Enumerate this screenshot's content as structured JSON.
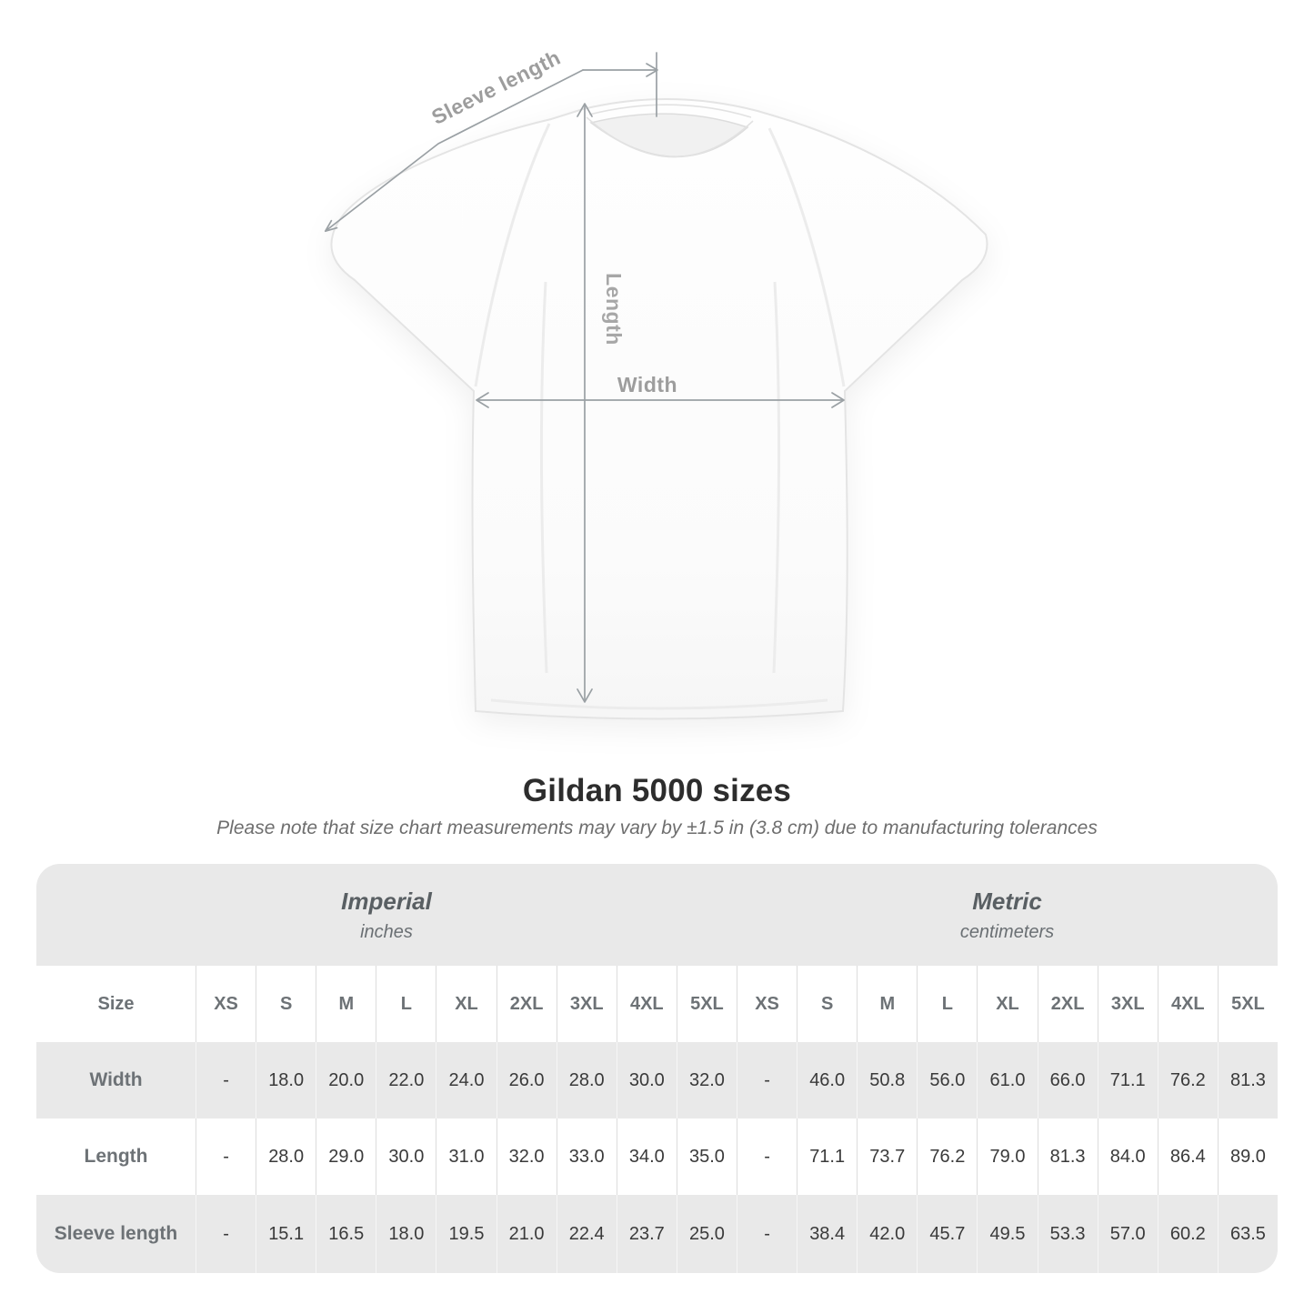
{
  "diagram": {
    "sleeve_length_label": "Sleeve length",
    "length_label": "Length",
    "width_label": "Width"
  },
  "title": "Gildan 5000 sizes",
  "subtitle": "Please note that size chart measurements may vary by ±1.5 in (3.8 cm) due to manufacturing tolerances",
  "chart_data": {
    "type": "table",
    "title": "Gildan 5000 sizes",
    "sections": [
      {
        "name": "Imperial",
        "unit": "inches"
      },
      {
        "name": "Metric",
        "unit": "centimeters"
      }
    ],
    "size_header": "Size",
    "sizes": [
      "XS",
      "S",
      "M",
      "L",
      "XL",
      "2XL",
      "3XL",
      "4XL",
      "5XL"
    ],
    "rows": [
      {
        "label": "Width",
        "imperial": [
          "-",
          "18.0",
          "20.0",
          "22.0",
          "24.0",
          "26.0",
          "28.0",
          "30.0",
          "32.0"
        ],
        "metric": [
          "-",
          "46.0",
          "50.8",
          "56.0",
          "61.0",
          "66.0",
          "71.1",
          "76.2",
          "81.3"
        ]
      },
      {
        "label": "Length",
        "imperial": [
          "-",
          "28.0",
          "29.0",
          "30.0",
          "31.0",
          "32.0",
          "33.0",
          "34.0",
          "35.0"
        ],
        "metric": [
          "-",
          "71.1",
          "73.7",
          "76.2",
          "79.0",
          "81.3",
          "84.0",
          "86.4",
          "89.0"
        ]
      },
      {
        "label": "Sleeve length",
        "imperial": [
          "-",
          "15.1",
          "16.5",
          "18.0",
          "19.5",
          "21.0",
          "22.4",
          "23.7",
          "25.0"
        ],
        "metric": [
          "-",
          "38.4",
          "42.0",
          "45.7",
          "49.5",
          "53.3",
          "57.0",
          "60.2",
          "63.5"
        ]
      }
    ]
  },
  "colors": {
    "section_band_gray": "#e9e9e9",
    "row_stripe_gray": "#e9e9e9",
    "value_text": "#3a3a3a",
    "header_text": "#6d7276",
    "annotation_text": "#9d9d9d",
    "arrow_gray": "#9aa0a4"
  }
}
